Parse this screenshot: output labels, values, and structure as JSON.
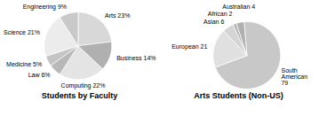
{
  "chart_data": [
    {
      "type": "pie",
      "title": "Students by Faculty",
      "categories": [
        "Arts 23%",
        "Business 14%",
        "Computing 22%",
        "Law 6%",
        "Medicine 5%",
        "Science 21%",
        "Engineering 9%"
      ],
      "values": [
        23,
        14,
        22,
        6,
        5,
        21,
        9
      ],
      "colors": [
        "#d8d8d8",
        "#b0b0b0",
        "#e4e4e4",
        "#b8b8b8",
        "#c4c4c4",
        "#ececec",
        "#c8c8c8"
      ]
    },
    {
      "type": "pie",
      "title": "Arts Students (Non-US)",
      "categories": [
        "South\nAmerican\n79",
        "European 21",
        "Asian 6",
        "African 2",
        "Australian 4"
      ],
      "values": [
        79,
        21,
        6,
        2,
        4
      ],
      "colors": [
        "#c8c8c8",
        "#e0e0e0",
        "#d4d4d4",
        "#b8b8b8",
        "#b0b0b0"
      ]
    }
  ]
}
